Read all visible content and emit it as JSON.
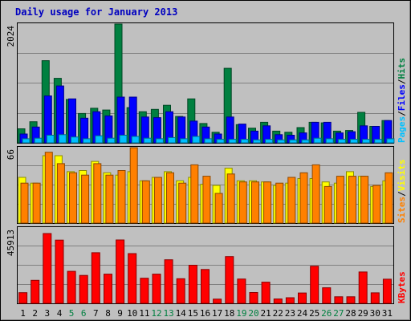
{
  "chart_data": {
    "title": "Daily usage for January 2013",
    "type": "bar",
    "categories": [
      "1",
      "2",
      "3",
      "4",
      "5",
      "6",
      "7",
      "8",
      "9",
      "10",
      "11",
      "12",
      "13",
      "14",
      "15",
      "16",
      "17",
      "18",
      "19",
      "20",
      "21",
      "22",
      "23",
      "24",
      "25",
      "26",
      "27",
      "28",
      "29",
      "30",
      "31"
    ],
    "weekend_days": [
      "5",
      "6",
      "12",
      "13",
      "19",
      "20",
      "26",
      "27"
    ],
    "panels": [
      {
        "id": "hits-files-pages",
        "ymax_label": "2024",
        "ylim": [
          0,
          2024
        ],
        "series": [
          {
            "name": "Hits",
            "color": "#008040",
            "values": [
              240,
              360,
              1400,
              1100,
              740,
              500,
              590,
              560,
              2024,
              600,
              530,
              570,
              640,
              450,
              750,
              330,
              180,
              1270,
              310,
              250,
              350,
              200,
              180,
              260,
              350,
              340,
              200,
              210,
              520,
              280,
              380
            ]
          },
          {
            "name": "Files",
            "color": "#0000ff",
            "values": [
              150,
              270,
              800,
              970,
              750,
              420,
              530,
              460,
              780,
              780,
              440,
              430,
              530,
              440,
              370,
              270,
              150,
              440,
              320,
              200,
              290,
              140,
              130,
              170,
              350,
              350,
              170,
              190,
              290,
              280,
              380
            ]
          },
          {
            "name": "Pages",
            "color": "#00c0ff",
            "values": [
              70,
              80,
              130,
              140,
              100,
              70,
              120,
              80,
              130,
              110,
              80,
              70,
              90,
              70,
              110,
              70,
              60,
              60,
              60,
              50,
              60,
              50,
              50,
              50,
              80,
              70,
              60,
              60,
              60,
              60,
              70
            ]
          }
        ],
        "legend": [
          "Pages",
          "Files",
          "Hits"
        ]
      },
      {
        "id": "sites-visits",
        "ymax_label": "66",
        "ylim": [
          0,
          66
        ],
        "series": [
          {
            "name": "Visits",
            "color": "#ffff00",
            "values": [
              40,
              35,
              59,
              59,
              45,
              46,
              54,
              44,
              42,
              45,
              37,
              40,
              45,
              37,
              40,
              34,
              33,
              48,
              37,
              37,
              36,
              33,
              35,
              39,
              39,
              36,
              35,
              45,
              41,
              32,
              37
            ]
          },
          {
            "name": "Sites",
            "color": "#ff8000",
            "values": [
              35,
              35,
              62,
              52,
              44,
              42,
              52,
              42,
              46,
              66,
              37,
              40,
              44,
              35,
              51,
              41,
              26,
              43,
              36,
              36,
              36,
              35,
              40,
              44,
              51,
              32,
              41,
              41,
              41,
              33,
              44
            ]
          }
        ],
        "legend": [
          "Sites",
          "Visits"
        ]
      },
      {
        "id": "kbytes",
        "ymax_label": "45913",
        "ylim": [
          0,
          45913
        ],
        "series": [
          {
            "name": "KBytes",
            "color": "#ff0000",
            "values": [
              6500,
              14000,
              42500,
              38500,
              19500,
              17000,
              30800,
              17800,
              38600,
              30300,
              15300,
              17800,
              26500,
              15000,
              23200,
              20600,
              2600,
              28500,
              14800,
              6600,
              12900,
              2700,
              3400,
              6300,
              22600,
              9500,
              4000,
              4000,
              19100,
              6400,
              14700
            ]
          }
        ],
        "legend": [
          "KBytes"
        ]
      }
    ]
  }
}
